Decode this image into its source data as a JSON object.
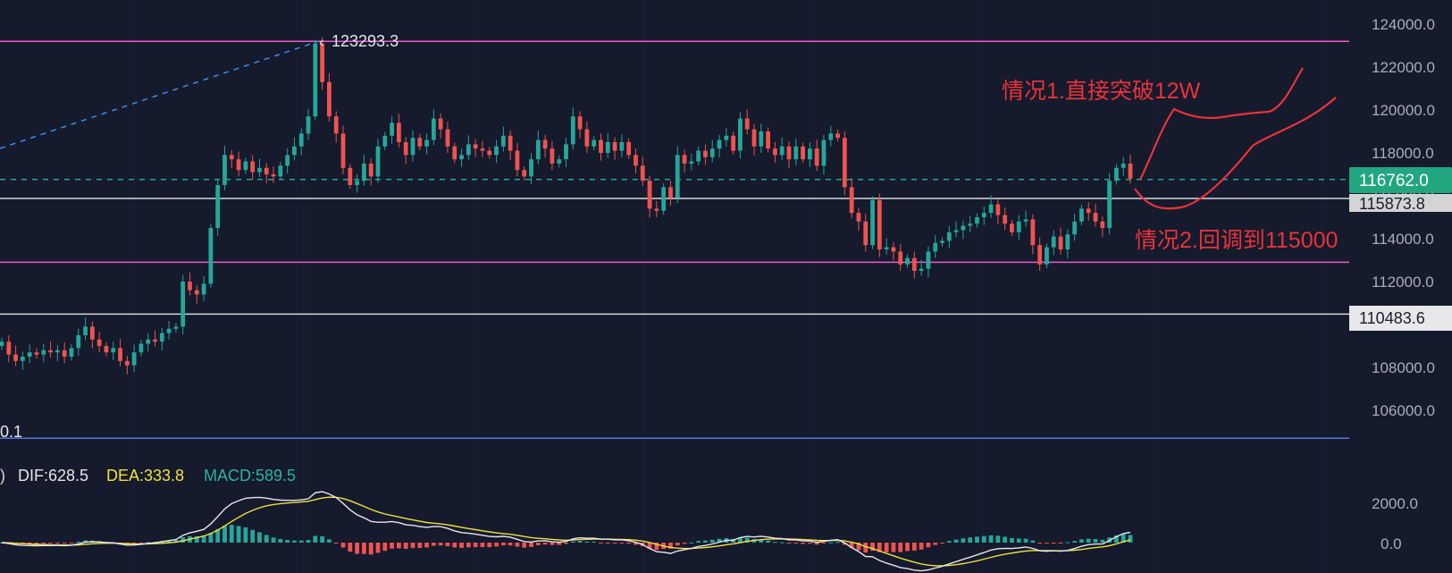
{
  "chart_data": {
    "type": "candlestick",
    "y_axis": {
      "min": 104000,
      "max": 125000,
      "ticks": [
        "124000.0",
        "122000.0",
        "120000.0",
        "118000.0",
        "116000.0",
        "114000.0",
        "112000.0",
        "110000.0",
        "108000.0",
        "106000.0"
      ]
    },
    "price_tags": {
      "current": "116762.0",
      "level_1": "115873.8",
      "level_2": "110483.6",
      "peak": "123293.3",
      "low_fragment": "0.1"
    },
    "levels": [
      {
        "value": 123200,
        "color": "#e85bd0"
      },
      {
        "value": 116762,
        "color": "#26a69a",
        "dashed": true
      },
      {
        "value": 115873.8,
        "color": "#d8d8d8"
      },
      {
        "value": 112900,
        "color": "#e85bd0"
      },
      {
        "value": 110483.6,
        "color": "#d8d8d8"
      },
      {
        "value": 104700,
        "color": "#4a7bd6"
      }
    ],
    "annotations": [
      {
        "text": "情况1.直接突破12W",
        "color": "#e8333a"
      },
      {
        "text": "情况2.回调到115000",
        "color": "#e8333a"
      }
    ],
    "closes": [
      109200,
      108600,
      108300,
      108500,
      108700,
      108600,
      108800,
      108700,
      108800,
      108500,
      108900,
      109500,
      109900,
      109300,
      109000,
      108700,
      108900,
      108300,
      108100,
      108700,
      109100,
      109300,
      109200,
      109600,
      109800,
      109900,
      112000,
      111600,
      111400,
      111900,
      114500,
      116500,
      117900,
      117700,
      117200,
      117600,
      117100,
      117300,
      117000,
      116900,
      117400,
      117900,
      118300,
      118900,
      119700,
      123100,
      121300,
      119700,
      118900,
      117300,
      116500,
      116700,
      117500,
      116900,
      118300,
      118800,
      119400,
      118500,
      117900,
      118700,
      118300,
      118600,
      119600,
      119100,
      118300,
      117700,
      117900,
      118400,
      118200,
      118100,
      117900,
      118300,
      118800,
      118100,
      117200,
      116900,
      117700,
      118600,
      118200,
      117500,
      117700,
      118400,
      119700,
      119100,
      118300,
      118600,
      118000,
      118500,
      118100,
      118500,
      117900,
      117400,
      116700,
      115400,
      115300,
      116400,
      115900,
      117900,
      117500,
      117600,
      118100,
      117800,
      118200,
      118600,
      118800,
      118100,
      119600,
      119100,
      118300,
      119000,
      118200,
      117900,
      118300,
      117700,
      118300,
      117700,
      118200,
      117400,
      118600,
      118900,
      118700,
      116400,
      115200,
      114800,
      113700,
      115800,
      113500,
      113600,
      113400,
      112800,
      113100,
      112500,
      112600,
      113400,
      113800,
      113900,
      114300,
      114400,
      114600,
      114700,
      115000,
      115200,
      115600,
      115100,
      114700,
      114300,
      114800,
      114900,
      113700,
      112800,
      113600,
      114100,
      113500,
      114200,
      114800,
      115400,
      115200,
      114800,
      114500,
      116700,
      117300,
      117500,
      116800
    ],
    "macd": {
      "title": ")",
      "dif_label": "DIF:628.5",
      "dea_label": "DEA:333.8",
      "macd_label": "MACD:589.5",
      "y_ticks": [
        "2000.0",
        "0.0"
      ],
      "y_min": -1400,
      "y_max": 2600
    }
  }
}
